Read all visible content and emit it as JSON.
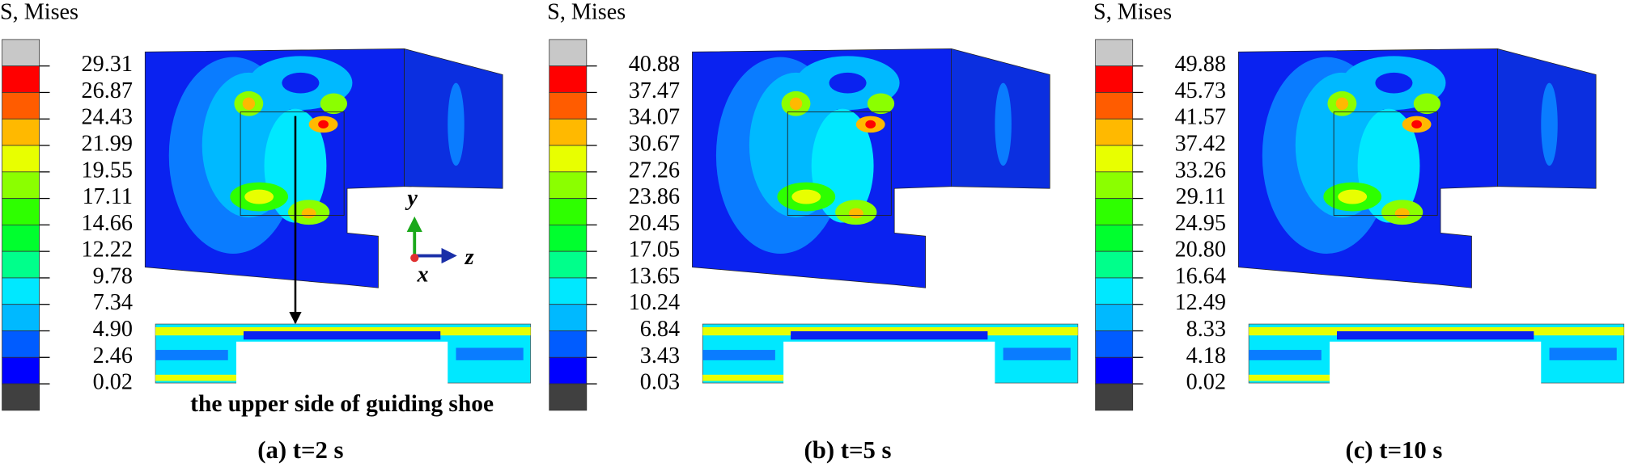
{
  "panels": [
    {
      "legend_title": "S, Mises",
      "legend_labels": [
        "29.31",
        "26.87",
        "24.43",
        "21.99",
        "19.55",
        "17.11",
        "14.66",
        "12.22",
        "9.78",
        "7.34",
        "4.90",
        "2.46",
        "0.02"
      ],
      "caption": "(a) t=2 s",
      "annotation": "the upper side of guiding shoe",
      "axes": {
        "y": "y",
        "z": "z",
        "x": "x"
      }
    },
    {
      "legend_title": "S, Mises",
      "legend_labels": [
        "40.88",
        "37.47",
        "34.07",
        "30.67",
        "27.26",
        "23.86",
        "20.45",
        "17.05",
        "13.65",
        "10.24",
        "6.84",
        "3.43",
        "0.03"
      ],
      "caption": "(b) t=5 s"
    },
    {
      "legend_title": "S, Mises",
      "legend_labels": [
        "49.88",
        "45.73",
        "41.57",
        "37.42",
        "33.26",
        "29.11",
        "24.95",
        "20.80",
        "16.64",
        "12.49",
        "8.33",
        "4.18",
        "0.02"
      ],
      "caption": "(c) t=10 s"
    }
  ]
}
